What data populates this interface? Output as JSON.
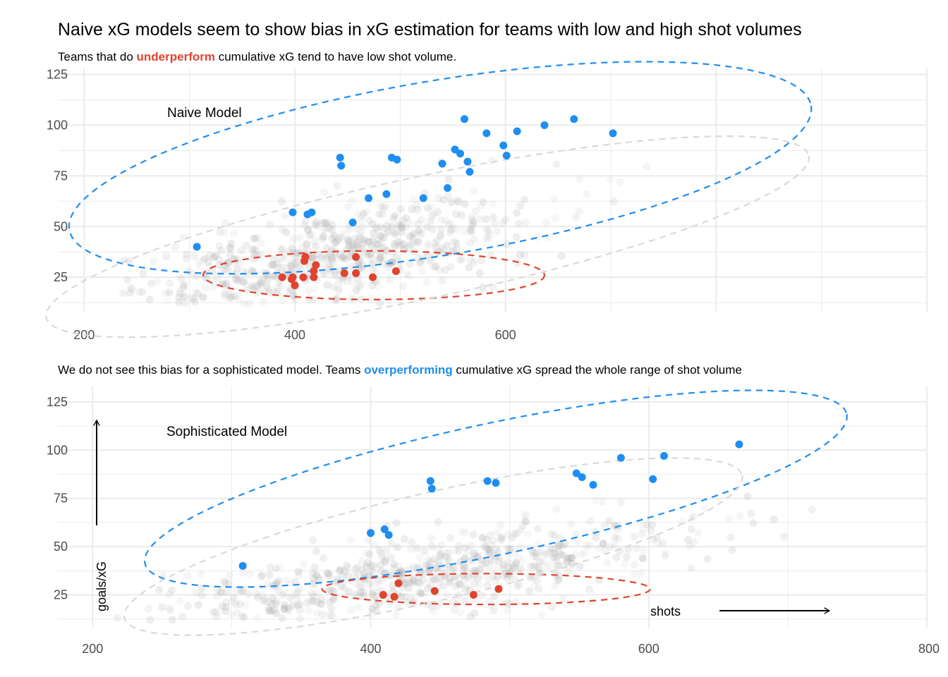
{
  "chart_data": {
    "type": "scatter",
    "title": "Naive xG models seem to show bias in xG estimation for teams with low and high shot volumes",
    "colors": {
      "underperform": "#e0442f",
      "overperform": "#1e8ef2",
      "background": "#aaaaaa",
      "ellipse_background": "#d9d9d9"
    },
    "x_axis_label": "shots",
    "y_axis_label": "goals/xG",
    "panels": [
      {
        "subtitle": {
          "before": "Teams that do ",
          "highlight": "underperform",
          "highlight_color": "underperform",
          "after": " cumulative xG tend to have low shot volume."
        },
        "annotation": "Naive Model",
        "xlim": [
          175,
          1000
        ],
        "ylim": [
          8,
          128
        ],
        "xticks": [
          200,
          400,
          600
        ],
        "xtick_labels": [
          "200",
          "400",
          "600"
        ],
        "yticks": [
          25,
          50,
          75,
          100,
          125
        ],
        "ytick_labels": [
          "25",
          "50",
          "75",
          "100",
          "125"
        ],
        "overperform_points": [
          [
            307,
            40
          ],
          [
            398,
            57
          ],
          [
            412,
            56
          ],
          [
            416,
            57
          ],
          [
            443,
            84
          ],
          [
            444,
            80
          ],
          [
            455,
            52
          ],
          [
            470,
            64
          ],
          [
            487,
            66
          ],
          [
            492,
            84
          ],
          [
            497,
            83
          ],
          [
            522,
            64
          ],
          [
            540,
            81
          ],
          [
            545,
            69
          ],
          [
            552,
            88
          ],
          [
            557,
            86
          ],
          [
            561,
            103
          ],
          [
            564,
            82
          ],
          [
            566,
            77
          ],
          [
            582,
            96
          ],
          [
            598,
            90
          ],
          [
            601,
            85
          ],
          [
            611,
            97
          ],
          [
            637,
            100
          ],
          [
            665,
            103
          ],
          [
            702,
            96
          ]
        ],
        "underperform_points": [
          [
            388,
            25
          ],
          [
            397,
            24
          ],
          [
            398,
            25
          ],
          [
            400,
            21
          ],
          [
            408,
            25
          ],
          [
            409,
            33
          ],
          [
            410,
            35
          ],
          [
            418,
            28
          ],
          [
            418,
            25
          ],
          [
            420,
            31
          ],
          [
            447,
            27
          ],
          [
            458,
            35
          ],
          [
            458,
            27
          ],
          [
            474,
            25
          ],
          [
            496,
            28
          ]
        ],
        "ellipses": [
          {
            "group": "overperform",
            "cx": 538,
            "cy": 79,
            "rx": 357,
            "ry": 43,
            "angle": 9.5
          },
          {
            "group": "underperform",
            "cx": 475,
            "cy": 26,
            "rx": 162,
            "ry": 12,
            "angle": 0
          },
          {
            "group": "background",
            "cx": 526,
            "cy": 45,
            "rx": 370,
            "ry": 30,
            "angle": 12
          }
        ]
      },
      {
        "subtitle": {
          "before": "We do not see this bias for a sophisticated model. Teams ",
          "highlight": "overperforming",
          "highlight_color": "overperform",
          "after": " cumulative xG spread the whole range of shot volume"
        },
        "annotation": "Sophisticated Model",
        "xlim": [
          175,
          800
        ],
        "ylim": [
          8,
          133
        ],
        "xticks": [
          200,
          400,
          600,
          800
        ],
        "xtick_labels": [
          "200",
          "400",
          "600",
          "800"
        ],
        "yticks": [
          25,
          50,
          75,
          100,
          125
        ],
        "ytick_labels": [
          "25",
          "50",
          "75",
          "100",
          "125"
        ],
        "overperform_points": [
          [
            308,
            40
          ],
          [
            400,
            57
          ],
          [
            410,
            59
          ],
          [
            413,
            56
          ],
          [
            443,
            84
          ],
          [
            444,
            80
          ],
          [
            484,
            84
          ],
          [
            490,
            83
          ],
          [
            548,
            88
          ],
          [
            552,
            86
          ],
          [
            560,
            82
          ],
          [
            580,
            96
          ],
          [
            603,
            85
          ],
          [
            611,
            97
          ],
          [
            665,
            103
          ]
        ],
        "underperform_points": [
          [
            409,
            25
          ],
          [
            417,
            24
          ],
          [
            420,
            31
          ],
          [
            446,
            27
          ],
          [
            474,
            25
          ],
          [
            492,
            28
          ]
        ],
        "ellipses": [
          {
            "group": "overperform",
            "cx": 490,
            "cy": 80,
            "rx": 258,
            "ry": 34,
            "angle": 12
          },
          {
            "group": "underperform",
            "cx": 483,
            "cy": 28,
            "rx": 118,
            "ry": 8,
            "angle": 0
          },
          {
            "group": "background",
            "cx": 445,
            "cy": 50,
            "rx": 228,
            "ry": 28,
            "angle": 13
          }
        ]
      }
    ]
  }
}
